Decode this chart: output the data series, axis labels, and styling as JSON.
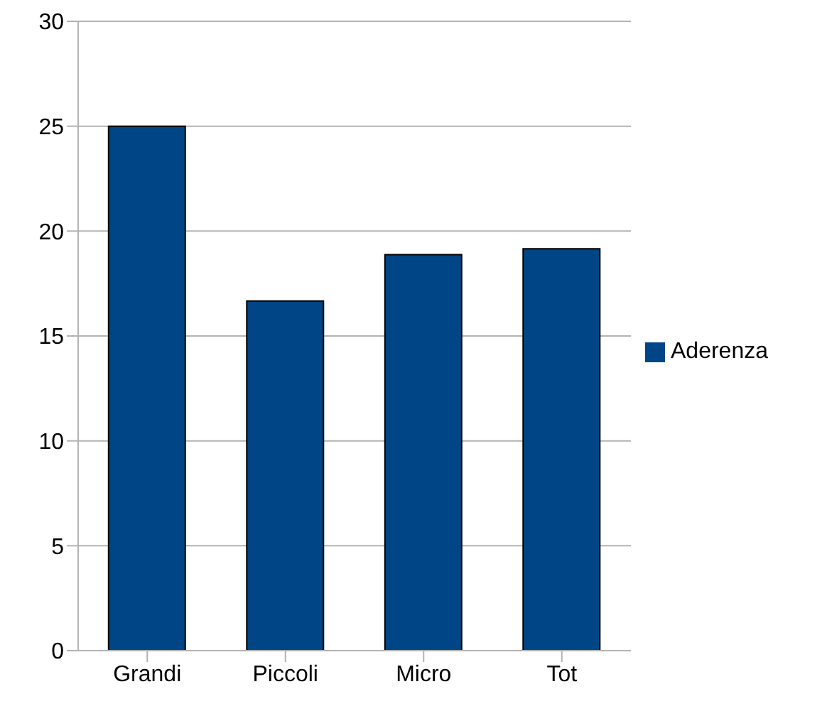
{
  "chart_data": {
    "type": "bar",
    "categories": [
      "Grandi",
      "Piccoli",
      "Micro",
      "Tot"
    ],
    "series": [
      {
        "name": "Aderenza",
        "color": "#004586",
        "values": [
          25,
          16.67,
          18.88,
          19.16
        ]
      }
    ],
    "ylim": [
      0,
      30
    ],
    "yticks": [
      0,
      5,
      10,
      15,
      20,
      25,
      30
    ],
    "grid": "y",
    "legend": "right"
  }
}
